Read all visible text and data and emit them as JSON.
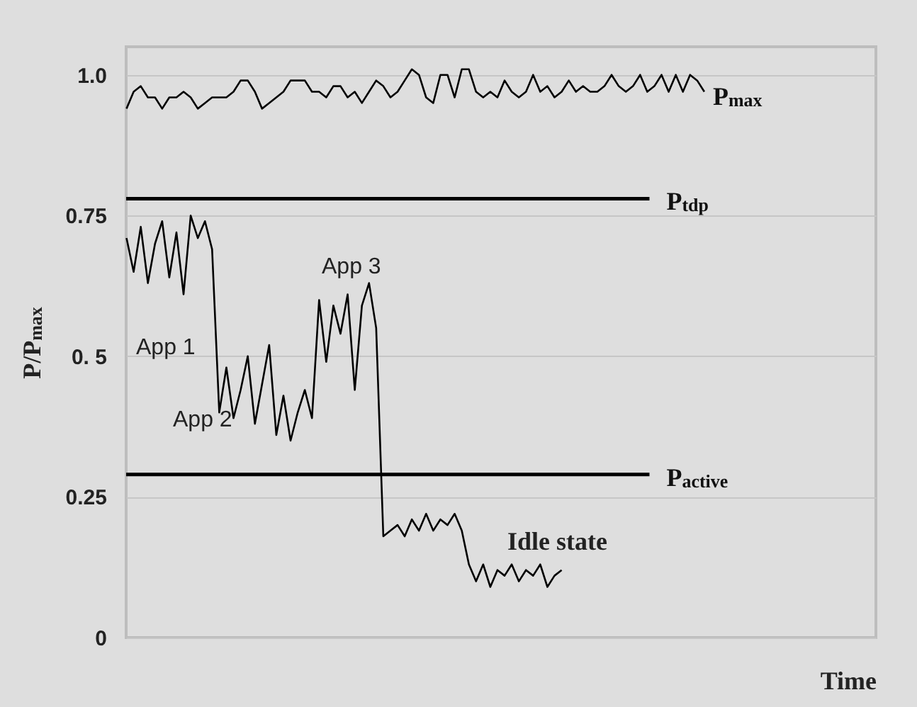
{
  "chart_data": {
    "type": "line",
    "categories": [
      null,
      null,
      null,
      null,
      null,
      null,
      null,
      null,
      null,
      null,
      null,
      null,
      null,
      null,
      null,
      null,
      null,
      null,
      null,
      null,
      null,
      null,
      null,
      null,
      null,
      null,
      null,
      null,
      null,
      null,
      null,
      null,
      null,
      null,
      null,
      null,
      null,
      null,
      null,
      null,
      null,
      null,
      null,
      null,
      null,
      null,
      null,
      null,
      null,
      null,
      null,
      null,
      null,
      null,
      null,
      null,
      null,
      null,
      null,
      null,
      null,
      null,
      null,
      null,
      null,
      null,
      null,
      null,
      null,
      null,
      null,
      null,
      null,
      null,
      null,
      null,
      null,
      null,
      null,
      null,
      null,
      null,
      null,
      null,
      null,
      null,
      null,
      null,
      null,
      null,
      null,
      null,
      null,
      null,
      null,
      null,
      null,
      null,
      null,
      null,
      null,
      null,
      null,
      null,
      null,
      null
    ],
    "series": [
      {
        "name": "P$_{max}$",
        "color": "#000000",
        "values": [
          0.94,
          0.97,
          0.98,
          0.96,
          0.96,
          0.94,
          0.96,
          0.96,
          0.97,
          0.96,
          0.94,
          0.95,
          0.96,
          0.96,
          0.96,
          0.97,
          0.99,
          0.99,
          0.97,
          0.94,
          0.95,
          0.96,
          0.97,
          0.99,
          0.99,
          0.99,
          0.97,
          0.97,
          0.96,
          0.98,
          0.98,
          0.96,
          0.97,
          0.95,
          0.97,
          0.99,
          0.98,
          0.96,
          0.97,
          0.99,
          1.01,
          1.0,
          0.96,
          0.95,
          1.0,
          1.0,
          0.96,
          1.01,
          1.01,
          0.97,
          0.96,
          0.97,
          0.96,
          0.99,
          0.97,
          0.96,
          0.97,
          1.0,
          0.97,
          0.98,
          0.96,
          0.97,
          0.99,
          0.97,
          0.98,
          0.97,
          0.97,
          0.98,
          1.0,
          0.98,
          0.97,
          0.98,
          1.0,
          0.97,
          0.98,
          1.0,
          0.97,
          1.0,
          0.97,
          1.0,
          0.99,
          0.97,
          null,
          null,
          null,
          null,
          null,
          null,
          null,
          null,
          null,
          null,
          null,
          null,
          null,
          null,
          null,
          null,
          null,
          null,
          null,
          null,
          null,
          null,
          null,
          null
        ]
      },
      {
        "color": "#000000",
        "values": [
          0.71,
          0.65,
          0.73,
          0.63,
          0.7,
          0.74,
          0.64,
          0.72,
          0.61,
          0.75,
          0.71,
          0.74,
          0.69,
          0.4,
          0.48,
          0.39,
          0.44,
          0.5,
          0.38,
          0.45,
          0.52,
          0.36,
          0.43,
          0.35,
          0.4,
          0.44,
          0.39,
          0.6,
          0.49,
          0.59,
          0.54,
          0.61,
          0.44,
          0.59,
          0.63,
          0.55,
          0.18,
          0.19,
          0.2,
          0.18,
          0.21,
          0.19,
          0.22,
          0.19,
          0.21,
          0.2,
          0.22,
          0.19,
          0.13,
          0.1,
          0.13,
          0.09,
          0.12,
          0.11,
          0.13,
          0.1,
          0.12,
          0.11,
          0.13,
          0.09,
          0.11,
          0.12,
          null,
          null,
          null,
          null,
          null,
          null,
          null,
          null,
          null,
          null,
          null,
          null,
          null,
          null,
          null,
          null,
          null,
          null,
          null,
          null,
          null,
          null,
          null,
          null,
          null,
          null,
          null,
          null,
          null,
          null,
          null,
          null,
          null,
          null,
          null,
          null,
          null,
          null,
          null,
          null,
          null,
          null,
          null,
          null
        ]
      }
    ],
    "ylabel": "P/P$_{max}$",
    "xlabel": "Time",
    "ylim": [
      0,
      1.05
    ],
    "yticks": [
      0,
      0.25,
      {
        "value": 0.5,
        "label": "0. 5"
      },
      0.75,
      {
        "value": 1,
        "label": "1.0"
      }
    ],
    "ref_lines": [
      {
        "axis": "y",
        "value": 0.78,
        "label": "P$_{tdp}$"
      },
      {
        "axis": "y",
        "value": 0.29,
        "label": "P$_{active}$"
      }
    ],
    "annotations": [
      "App 1",
      "App 2",
      "App 3",
      "Idle state"
    ],
    "grid": "y",
    "tick_labels": "y",
    "marker": "none",
    "line_style": "solid"
  }
}
